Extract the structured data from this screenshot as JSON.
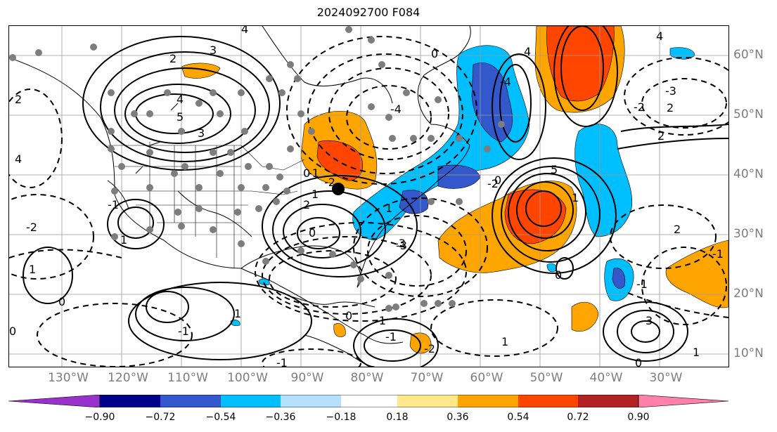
{
  "title": "2024092700 F084",
  "lon_labels": [
    "130°W",
    "120°W",
    "110°W",
    "100°W",
    "90°W",
    "80°W",
    "70°W",
    "60°W",
    "50°W",
    "40°W",
    "30°W"
  ],
  "lat_labels": [
    "60°N",
    "50°N",
    "40°N",
    "30°N",
    "20°N",
    "10°N"
  ],
  "colorbar": {
    "colors": [
      "#9932cc",
      "#00008b",
      "#3358cc",
      "#00bfff",
      "#b3e1ff",
      "#ffffff",
      "#ffe88c",
      "#ffa500",
      "#ff4500",
      "#b22222",
      "#ff80ab"
    ],
    "ticks": [
      "−0.90",
      "−0.72",
      "−0.54",
      "−0.36",
      "−0.18",
      "0.18",
      "0.36",
      "0.54",
      "0.72",
      "0.90"
    ]
  },
  "contour_labels": [
    {
      "text": "3"
    },
    {
      "text": "4"
    },
    {
      "text": "2"
    },
    {
      "text": "4"
    },
    {
      "text": "5"
    },
    {
      "text": "3"
    },
    {
      "text": "4"
    },
    {
      "text": "2"
    },
    {
      "text": "4"
    },
    {
      "text": "-4"
    },
    {
      "text": "-3"
    },
    {
      "text": "-2"
    },
    {
      "text": "-1"
    },
    {
      "text": "0"
    },
    {
      "text": "1"
    },
    {
      "text": "2"
    },
    {
      "text": "-2"
    },
    {
      "text": "-1"
    },
    {
      "text": "1"
    },
    {
      "text": "0"
    },
    {
      "text": "1"
    },
    {
      "text": "0"
    },
    {
      "text": "-3"
    },
    {
      "text": "1"
    },
    {
      "text": "-2"
    },
    {
      "text": "0"
    },
    {
      "text": "2"
    },
    {
      "text": "5"
    },
    {
      "text": "-3"
    },
    {
      "text": "-2"
    },
    {
      "text": "2"
    },
    {
      "text": "4"
    },
    {
      "text": "-4"
    },
    {
      "text": "1"
    },
    {
      "text": "0"
    },
    {
      "text": "-1"
    },
    {
      "text": "2"
    },
    {
      "text": "1"
    },
    {
      "text": "-1"
    },
    {
      "text": "-1"
    },
    {
      "text": "0"
    },
    {
      "text": "-1"
    },
    {
      "text": "-2"
    },
    {
      "text": "1"
    },
    {
      "text": "3"
    },
    {
      "text": "0"
    },
    {
      "text": "1"
    },
    {
      "text": "-1"
    },
    {
      "text": "-1"
    },
    {
      "text": "0"
    },
    {
      "text": "0"
    }
  ]
}
